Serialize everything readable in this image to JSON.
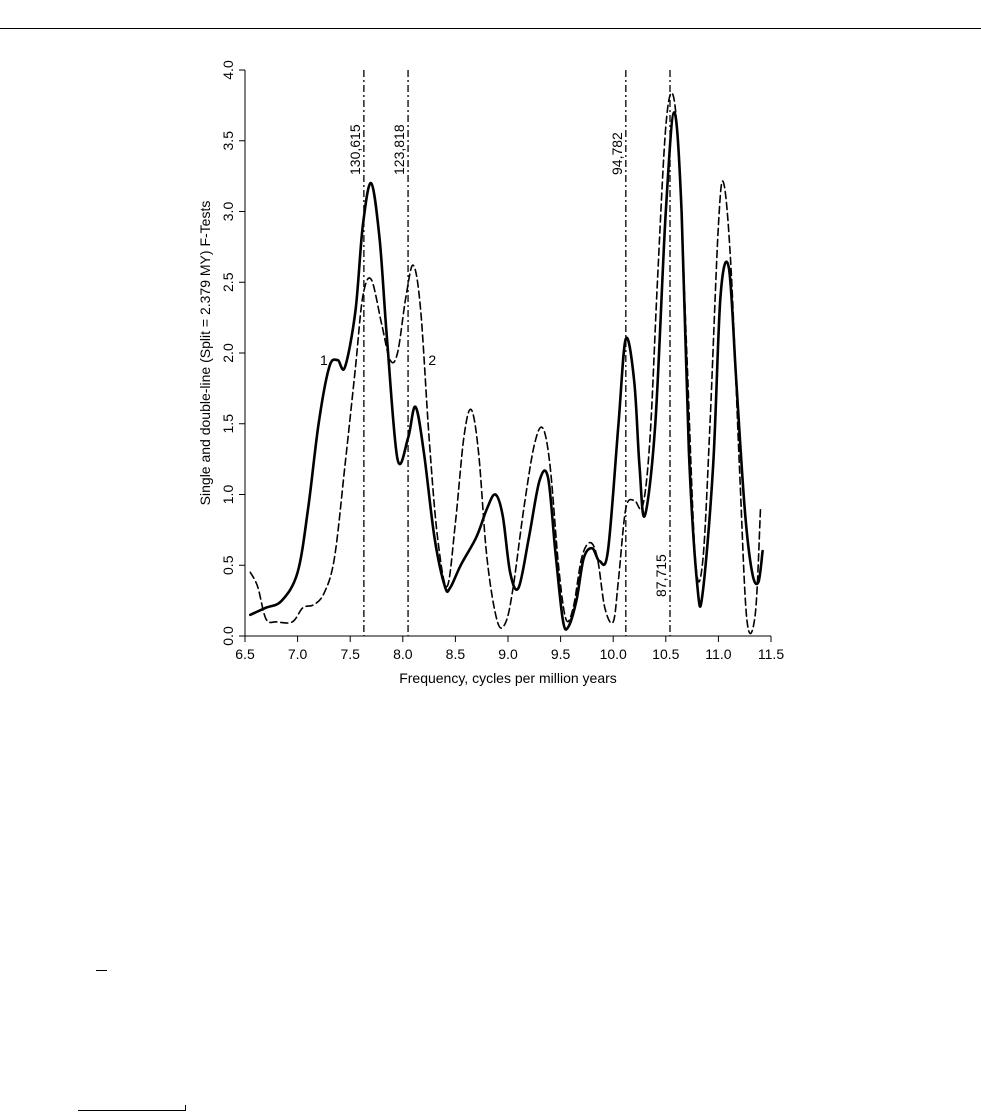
{
  "chart_data": {
    "type": "line",
    "xlabel": "Frequency, cycles per million years",
    "ylabel": "Single and double-line (Split = 2.379 MY) F-Tests",
    "xlim": [
      6.5,
      11.5
    ],
    "ylim": [
      0.0,
      4.0
    ],
    "xticks": [
      "6.5",
      "7.0",
      "7.5",
      "8.0",
      "8.5",
      "9.0",
      "9.5",
      "10.0",
      "10.5",
      "11.0",
      "11.5"
    ],
    "yticks": [
      "0.0",
      "0.5",
      "1.0",
      "1.5",
      "2.0",
      "2.5",
      "3.0",
      "3.5",
      "4.0"
    ],
    "grid": false,
    "series": [
      {
        "name": "1",
        "style": "solid",
        "x": [
          6.55,
          6.7,
          6.85,
          7.0,
          7.1,
          7.2,
          7.3,
          7.38,
          7.45,
          7.55,
          7.62,
          7.7,
          7.78,
          7.85,
          7.95,
          8.05,
          8.12,
          8.2,
          8.3,
          8.4,
          8.45,
          8.55,
          8.7,
          8.8,
          8.88,
          8.95,
          9.02,
          9.1,
          9.2,
          9.3,
          9.38,
          9.45,
          9.52,
          9.57,
          9.65,
          9.72,
          9.8,
          9.87,
          9.95,
          10.05,
          10.12,
          10.2,
          10.25,
          10.3,
          10.4,
          10.5,
          10.58,
          10.65,
          10.72,
          10.8,
          10.85,
          10.95,
          11.02,
          11.1,
          11.17,
          11.25,
          11.32,
          11.38,
          11.42
        ],
        "y": [
          0.15,
          0.2,
          0.25,
          0.45,
          0.9,
          1.5,
          1.9,
          1.95,
          1.9,
          2.3,
          2.9,
          3.2,
          2.8,
          2.1,
          1.25,
          1.4,
          1.62,
          1.3,
          0.7,
          0.35,
          0.34,
          0.5,
          0.7,
          0.9,
          1.0,
          0.85,
          0.45,
          0.34,
          0.7,
          1.1,
          1.12,
          0.6,
          0.12,
          0.06,
          0.25,
          0.55,
          0.62,
          0.53,
          0.6,
          1.5,
          2.1,
          1.8,
          1.2,
          0.85,
          1.5,
          3.0,
          3.7,
          3.0,
          1.3,
          0.35,
          0.3,
          1.2,
          2.4,
          2.6,
          1.8,
          0.9,
          0.45,
          0.38,
          0.6
        ]
      },
      {
        "name": "2",
        "style": "dashed",
        "x": [
          6.55,
          6.62,
          6.7,
          6.8,
          6.95,
          7.05,
          7.15,
          7.25,
          7.35,
          7.45,
          7.55,
          7.62,
          7.7,
          7.8,
          7.88,
          7.95,
          8.03,
          8.1,
          8.17,
          8.25,
          8.33,
          8.42,
          8.5,
          8.58,
          8.65,
          8.72,
          8.8,
          8.9,
          8.98,
          9.05,
          9.15,
          9.25,
          9.33,
          9.4,
          9.48,
          9.55,
          9.62,
          9.7,
          9.78,
          9.85,
          9.92,
          10.0,
          10.05,
          10.12,
          10.2,
          10.28,
          10.35,
          10.42,
          10.5,
          10.57,
          10.63,
          10.7,
          10.78,
          10.85,
          10.92,
          11.0,
          11.05,
          11.12,
          11.2,
          11.27,
          11.35,
          11.4
        ],
        "y": [
          0.45,
          0.35,
          0.12,
          0.1,
          0.1,
          0.2,
          0.22,
          0.3,
          0.55,
          1.2,
          1.9,
          2.4,
          2.52,
          2.2,
          1.95,
          2.0,
          2.4,
          2.62,
          2.3,
          1.4,
          0.7,
          0.35,
          0.8,
          1.4,
          1.6,
          1.3,
          0.55,
          0.1,
          0.1,
          0.35,
          0.9,
          1.35,
          1.47,
          1.2,
          0.5,
          0.12,
          0.2,
          0.55,
          0.66,
          0.55,
          0.2,
          0.1,
          0.4,
          0.9,
          0.96,
          0.92,
          1.4,
          2.5,
          3.6,
          3.82,
          3.3,
          2.0,
          0.55,
          0.52,
          1.5,
          2.9,
          3.2,
          2.6,
          1.2,
          0.12,
          0.15,
          0.9
        ]
      }
    ],
    "vlines": [
      {
        "x": 7.63,
        "label": "130,615",
        "label_pos": "top"
      },
      {
        "x": 8.05,
        "label": "123,818",
        "label_pos": "top"
      },
      {
        "x": 10.12,
        "label": "94,782",
        "label_pos": "top"
      },
      {
        "x": 10.54,
        "label": "87,715",
        "label_pos": "bottom"
      }
    ],
    "annotations": [
      {
        "text": "1",
        "x": 7.25,
        "y": 1.95
      },
      {
        "text": "2",
        "x": 8.28,
        "y": 1.95
      }
    ]
  }
}
